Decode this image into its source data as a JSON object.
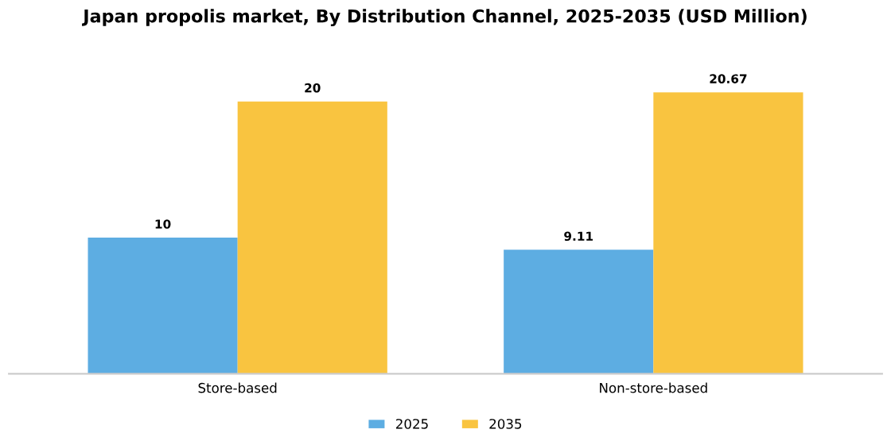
{
  "chart_data": {
    "type": "bar",
    "title": "Japan propolis market, By Distribution Channel, 2025-2035 (USD Million)",
    "categories": [
      "Store-based",
      "Non-store-based"
    ],
    "series": [
      {
        "name": "2025",
        "color": "#5dade2",
        "values": [
          10,
          9.11
        ]
      },
      {
        "name": "2035",
        "color": "#f9c440",
        "values": [
          20,
          20.67
        ]
      }
    ],
    "data_labels": true,
    "legend": "bottom",
    "grid": false
  }
}
